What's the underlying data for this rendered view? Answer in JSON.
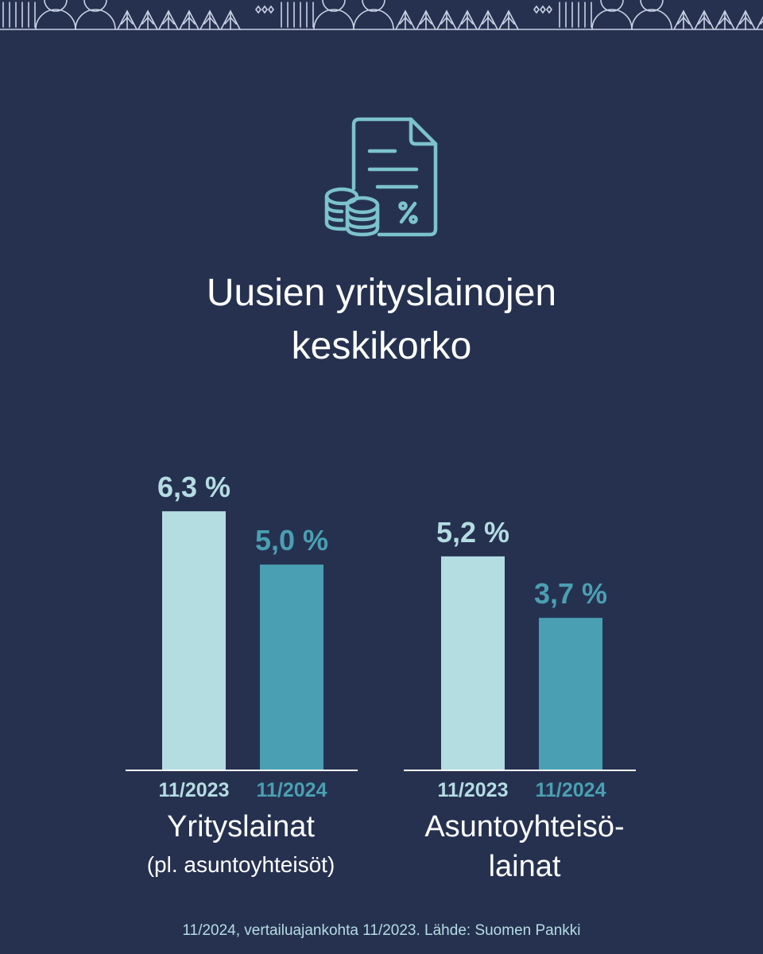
{
  "title": {
    "line1": "Uusien yrityslainojen",
    "line2": "keskikorko"
  },
  "icons": {
    "header": "loan-document-with-coins-percent-icon",
    "decoration": "nordic-pattern-strip"
  },
  "colors": {
    "background": "#263150",
    "series_2023": "#b4dde2",
    "series_2024": "#4aa0b2",
    "icon": "#7cc3cc",
    "text": "#ffffff"
  },
  "chart_data": {
    "type": "bar",
    "title": "Uusien yrityslainojen keskikorko",
    "categories": [
      "Yrityslainat (pl. asuntoyhteisöt)",
      "Asuntoyhteisölainat"
    ],
    "series": [
      {
        "name": "11/2023",
        "values": [
          6.3,
          5.2
        ],
        "labels": [
          "6,3 %",
          "5,2 %"
        ]
      },
      {
        "name": "11/2024",
        "values": [
          5.0,
          3.7
        ],
        "labels": [
          "5,0 %",
          "3,7 %"
        ]
      }
    ],
    "groups": [
      {
        "line1": "Yrityslainat",
        "line2": "(pl. asuntoyhteisöt)"
      },
      {
        "line1": "Asuntoyhteisö-",
        "line2": "lainat"
      }
    ],
    "ylim": [
      0,
      8.3
    ],
    "grid": false,
    "legend": "none"
  },
  "source": "11/2024, vertailuajankohta 11/2023. Lähde: Suomen Pankki"
}
